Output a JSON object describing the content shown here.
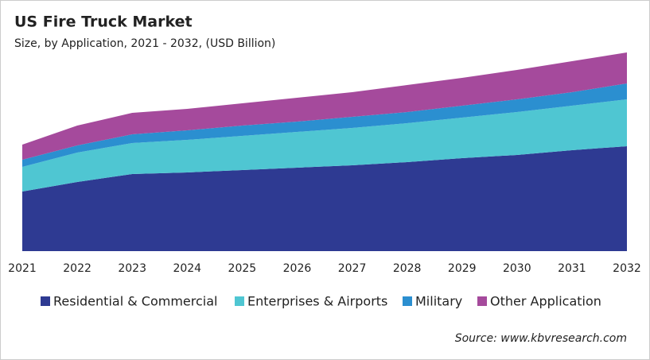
{
  "chart_data": {
    "type": "stacked_area",
    "title": "US Fire Truck Market",
    "subtitle": "Size, by Application, 2021 - 2032, (USD Billion)",
    "source": "Source: www.kbvresearch.com",
    "categories": [
      "2021",
      "2022",
      "2023",
      "2024",
      "2025",
      "2026",
      "2027",
      "2028",
      "2029",
      "2030",
      "2031",
      "2032"
    ],
    "ylim": [
      0,
      5
    ],
    "legend": "bottom",
    "series": [
      {
        "name": "Residential & Commercial",
        "color": "#2e3a92",
        "values": [
          1.5,
          1.74,
          1.94,
          1.98,
          2.04,
          2.1,
          2.16,
          2.24,
          2.34,
          2.42,
          2.54,
          2.64
        ]
      },
      {
        "name": "Enterprises & Airports",
        "color": "#4fc6d2",
        "values": [
          0.62,
          0.74,
          0.78,
          0.82,
          0.86,
          0.9,
          0.94,
          0.98,
          1.02,
          1.08,
          1.12,
          1.18
        ]
      },
      {
        "name": "Military",
        "color": "#2b8fd0",
        "values": [
          0.18,
          0.18,
          0.22,
          0.24,
          0.26,
          0.26,
          0.28,
          0.28,
          0.3,
          0.32,
          0.34,
          0.4
        ]
      },
      {
        "name": "Other Application",
        "color": "#a54a9c",
        "values": [
          0.38,
          0.5,
          0.54,
          0.54,
          0.56,
          0.6,
          0.62,
          0.68,
          0.7,
          0.74,
          0.78,
          0.78
        ]
      }
    ]
  }
}
